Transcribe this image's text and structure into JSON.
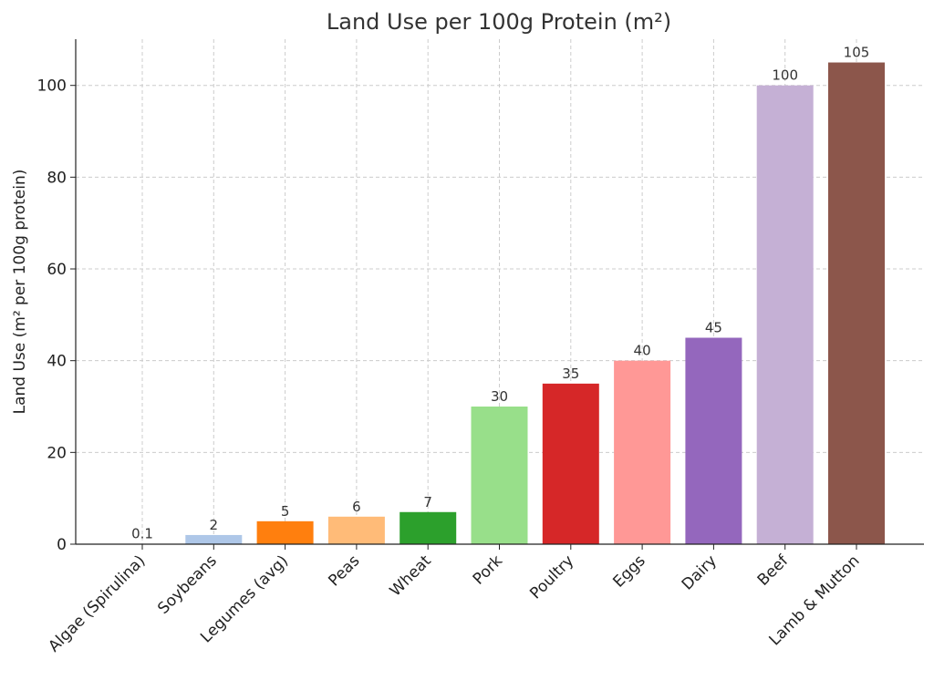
{
  "chart_data": {
    "type": "bar",
    "title": "Land Use per 100g Protein (m²)",
    "xlabel": "",
    "ylabel": "Land Use (m² per 100g protein)",
    "ylim": [
      0,
      110
    ],
    "yticks": [
      0,
      20,
      40,
      60,
      80,
      100
    ],
    "grid": true,
    "categories": [
      "Algae (Spirulina)",
      "Soybeans",
      "Legumes (avg)",
      "Peas",
      "Wheat",
      "Pork",
      "Poultry",
      "Eggs",
      "Dairy",
      "Beef",
      "Lamb & Mutton"
    ],
    "values": [
      0.1,
      2,
      5,
      6,
      7,
      30,
      35,
      40,
      45,
      100,
      105
    ],
    "value_labels": [
      "0.1",
      "2",
      "5",
      "6",
      "7",
      "30",
      "35",
      "40",
      "45",
      "100",
      "105"
    ],
    "colors": [
      "#1f77b4",
      "#aec7e8",
      "#ff7f0e",
      "#ffbb78",
      "#2ca02c",
      "#98df8a",
      "#d62728",
      "#ff9896",
      "#9467bd",
      "#c5b0d5",
      "#8c564b"
    ]
  }
}
